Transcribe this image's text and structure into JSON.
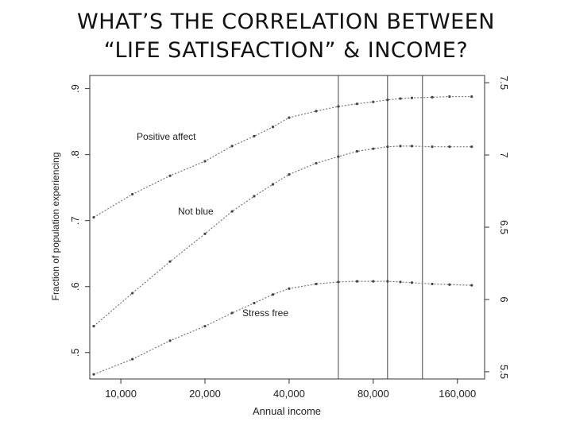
{
  "slide": {
    "title_line1": "WHAT’S THE CORRELATION BETWEEN",
    "title_line2": "“LIFE SATISFACTION” & INCOME?"
  },
  "chart_data": {
    "type": "line",
    "title": "",
    "xlabel": "Annual income",
    "ylabel": "Fraction of population experiencing",
    "x_scale": "log",
    "x_ticks": [
      10000,
      20000,
      40000,
      80000,
      160000
    ],
    "x_tick_labels": [
      "10,000",
      "20,000",
      "40,000",
      "80,000",
      "160,000"
    ],
    "xlim": [
      8000,
      190000
    ],
    "ylim": [
      0.46,
      0.92
    ],
    "y_ticks": [
      0.5,
      0.6,
      0.7,
      0.8,
      0.9
    ],
    "y_tick_labels": [
      ".5",
      ".6",
      ".7",
      ".8",
      ".9"
    ],
    "y2_ticks": [
      5.5,
      6,
      6.5,
      7,
      7.5
    ],
    "y2_tick_labels": [
      "5.5",
      "6",
      "6.5",
      "7",
      "7.5"
    ],
    "y2lim": [
      5.45,
      7.55
    ],
    "vertical_lines_x": [
      60000,
      90000,
      120000
    ],
    "grid": false,
    "series": [
      {
        "name": "Positive affect",
        "x": [
          8000,
          11000,
          15000,
          20000,
          25000,
          30000,
          35000,
          40000,
          50000,
          60000,
          70000,
          80000,
          90000,
          100000,
          110000,
          130000,
          150000,
          180000
        ],
        "y": [
          0.705,
          0.74,
          0.768,
          0.79,
          0.813,
          0.828,
          0.842,
          0.856,
          0.866,
          0.873,
          0.877,
          0.88,
          0.883,
          0.885,
          0.886,
          0.887,
          0.888,
          0.888
        ]
      },
      {
        "name": "Not blue",
        "x": [
          8000,
          11000,
          15000,
          20000,
          25000,
          30000,
          35000,
          40000,
          50000,
          60000,
          70000,
          80000,
          90000,
          100000,
          110000,
          130000,
          150000,
          180000
        ],
        "y": [
          0.54,
          0.59,
          0.638,
          0.68,
          0.714,
          0.737,
          0.755,
          0.77,
          0.787,
          0.797,
          0.805,
          0.809,
          0.812,
          0.813,
          0.813,
          0.812,
          0.812,
          0.812
        ]
      },
      {
        "name": "Stress free",
        "x": [
          8000,
          11000,
          15000,
          20000,
          25000,
          30000,
          35000,
          40000,
          50000,
          60000,
          70000,
          80000,
          90000,
          100000,
          110000,
          130000,
          150000,
          180000
        ],
        "y": [
          0.467,
          0.49,
          0.518,
          0.54,
          0.56,
          0.575,
          0.588,
          0.597,
          0.604,
          0.607,
          0.608,
          0.608,
          0.608,
          0.607,
          0.606,
          0.604,
          0.603,
          0.602
        ]
      }
    ]
  }
}
